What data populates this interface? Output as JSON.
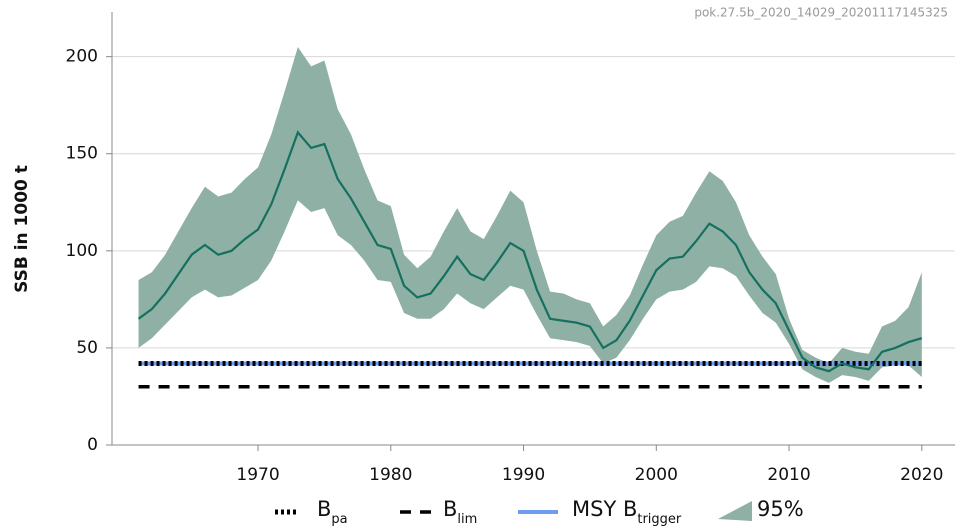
{
  "chart_data": {
    "type": "line",
    "source_label": "pok.27.5b_2020_14029_20201117145325",
    "y_label": "SSB in 1000 t",
    "x": [
      1961,
      1962,
      1963,
      1964,
      1965,
      1966,
      1967,
      1968,
      1969,
      1970,
      1971,
      1972,
      1973,
      1974,
      1975,
      1976,
      1977,
      1978,
      1979,
      1980,
      1981,
      1982,
      1983,
      1984,
      1985,
      1986,
      1987,
      1988,
      1989,
      1990,
      1991,
      1992,
      1993,
      1994,
      1995,
      1996,
      1997,
      1998,
      1999,
      2000,
      2001,
      2002,
      2003,
      2004,
      2005,
      2006,
      2007,
      2008,
      2009,
      2010,
      2011,
      2012,
      2013,
      2014,
      2015,
      2016,
      2017,
      2018,
      2019,
      2020
    ],
    "series": [
      {
        "color": "#15705f",
        "values": [
          65,
          70,
          78,
          88,
          98,
          103,
          98,
          100,
          106,
          111,
          124,
          142,
          161,
          153,
          155,
          137,
          127,
          115,
          103,
          101,
          82,
          76,
          78,
          87,
          97,
          88,
          85,
          94,
          104,
          100,
          80,
          65,
          64,
          63,
          61,
          50,
          54,
          64,
          77,
          90,
          96,
          97,
          105,
          114,
          110,
          103,
          89,
          80,
          73,
          59,
          45,
          40,
          38,
          42,
          40,
          39,
          48,
          50,
          53,
          55
        ]
      }
    ],
    "band": {
      "name": "95%",
      "color": "#8fb0a4",
      "upper": [
        85,
        89,
        98,
        110,
        122,
        133,
        128,
        130,
        137,
        143,
        160,
        182,
        205,
        195,
        198,
        173,
        160,
        142,
        126,
        123,
        98,
        91,
        97,
        110,
        122,
        110,
        106,
        118,
        131,
        125,
        100,
        79,
        78,
        75,
        73,
        61,
        67,
        77,
        93,
        108,
        115,
        118,
        130,
        141,
        136,
        125,
        108,
        97,
        88,
        65,
        49,
        45,
        42,
        50,
        48,
        47,
        61,
        64,
        71,
        89
      ],
      "lower": [
        50,
        55,
        62,
        69,
        76,
        80,
        76,
        77,
        81,
        85,
        95,
        110,
        126,
        120,
        122,
        108,
        103,
        95,
        85,
        84,
        68,
        65,
        65,
        70,
        78,
        73,
        70,
        76,
        82,
        80,
        67,
        55,
        54,
        53,
        51,
        42,
        45,
        54,
        65,
        75,
        79,
        80,
        84,
        92,
        91,
        87,
        77,
        68,
        63,
        52,
        39,
        35,
        32,
        36,
        35,
        33,
        40,
        41,
        41,
        35
      ]
    },
    "reference_lines": [
      {
        "name": "MSY B",
        "subscript": "trigger",
        "value": 42,
        "style": "solid",
        "color": "#6e9cf0"
      },
      {
        "name": "B",
        "subscript": "pa",
        "value": 42,
        "style": "dotted",
        "color": "#000000"
      },
      {
        "name": "B",
        "subscript": "lim",
        "value": 30,
        "style": "dashed",
        "color": "#000000"
      }
    ],
    "xlim": [
      1959,
      2022.5
    ],
    "ylim": [
      0,
      223
    ],
    "xticks": [
      1970,
      1980,
      1990,
      2000,
      2010,
      2020
    ],
    "yticks": [
      0,
      50,
      100,
      150,
      200
    ],
    "grid": true
  }
}
